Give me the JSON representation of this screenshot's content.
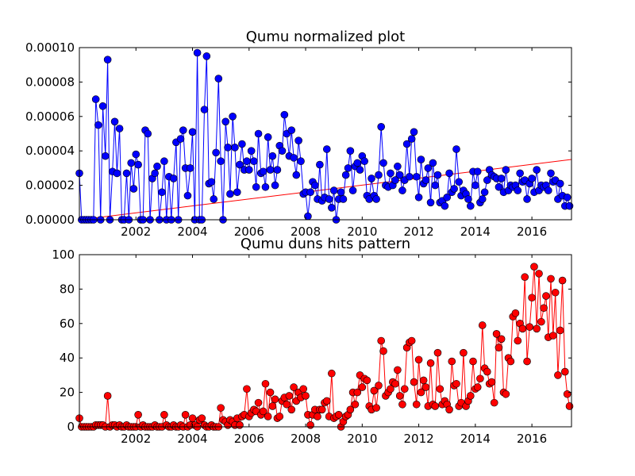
{
  "chart_data": [
    {
      "type": "line",
      "title": "Qumu normalized plot",
      "x": [
        2000,
        2000.08,
        2000.17,
        2000.25,
        2000.33,
        2000.42,
        2000.5,
        2000.58,
        2000.67,
        2000.75,
        2000.83,
        2000.92,
        2001,
        2001.08,
        2001.17,
        2001.25,
        2001.33,
        2001.42,
        2001.5,
        2001.58,
        2001.67,
        2001.75,
        2001.83,
        2001.92,
        2002,
        2002.08,
        2002.17,
        2002.25,
        2002.33,
        2002.42,
        2002.5,
        2002.58,
        2002.67,
        2002.75,
        2002.83,
        2002.92,
        2003,
        2003.08,
        2003.17,
        2003.25,
        2003.33,
        2003.42,
        2003.5,
        2003.58,
        2003.67,
        2003.75,
        2003.83,
        2003.92,
        2004,
        2004.08,
        2004.17,
        2004.25,
        2004.33,
        2004.42,
        2004.5,
        2004.58,
        2004.67,
        2004.75,
        2004.83,
        2004.92,
        2005,
        2005.08,
        2005.17,
        2005.25,
        2005.33,
        2005.42,
        2005.5,
        2005.58,
        2005.67,
        2005.75,
        2005.83,
        2005.92,
        2006,
        2006.08,
        2006.17,
        2006.25,
        2006.33,
        2006.42,
        2006.5,
        2006.58,
        2006.67,
        2006.75,
        2006.83,
        2006.92,
        2007,
        2007.08,
        2007.17,
        2007.25,
        2007.33,
        2007.42,
        2007.5,
        2007.58,
        2007.67,
        2007.75,
        2007.83,
        2007.92,
        2008,
        2008.08,
        2008.17,
        2008.25,
        2008.33,
        2008.42,
        2008.5,
        2008.58,
        2008.67,
        2008.75,
        2008.83,
        2008.92,
        2009,
        2009.08,
        2009.17,
        2009.25,
        2009.33,
        2009.42,
        2009.5,
        2009.58,
        2009.67,
        2009.75,
        2009.83,
        2009.92,
        2010,
        2010.08,
        2010.17,
        2010.25,
        2010.33,
        2010.42,
        2010.5,
        2010.58,
        2010.67,
        2010.75,
        2010.83,
        2010.92,
        2011,
        2011.08,
        2011.17,
        2011.25,
        2011.33,
        2011.42,
        2011.5,
        2011.58,
        2011.67,
        2011.75,
        2011.83,
        2011.92,
        2012,
        2012.08,
        2012.17,
        2012.25,
        2012.33,
        2012.42,
        2012.5,
        2012.58,
        2012.67,
        2012.75,
        2012.83,
        2012.92,
        2013,
        2013.08,
        2013.17,
        2013.25,
        2013.33,
        2013.42,
        2013.5,
        2013.58,
        2013.67,
        2013.75,
        2013.83,
        2013.92,
        2014,
        2014.08,
        2014.17,
        2014.25,
        2014.33,
        2014.42,
        2014.5,
        2014.58,
        2014.67,
        2014.75,
        2014.83,
        2014.92,
        2015,
        2015.08,
        2015.17,
        2015.25,
        2015.33,
        2015.42,
        2015.5,
        2015.58,
        2015.67,
        2015.75,
        2015.83,
        2015.92,
        2016,
        2016.08,
        2016.17,
        2016.25,
        2016.33,
        2016.42,
        2016.5,
        2016.58,
        2016.67,
        2016.75,
        2016.83,
        2016.92,
        2017,
        2017.08,
        2017.17,
        2017.25,
        2017.33
      ],
      "series": [
        {
          "color": "#0000ff",
          "values": [
            2.7e-05,
            0,
            0,
            0,
            0,
            0,
            0,
            7e-05,
            5.5e-05,
            0,
            6.6e-05,
            3.7e-05,
            9.3e-05,
            0,
            2.8e-05,
            5.7e-05,
            2.7e-05,
            5.3e-05,
            0,
            0,
            2.7e-05,
            0,
            3.3e-05,
            1.8e-05,
            3.8e-05,
            3.2e-05,
            0,
            0,
            5.2e-05,
            5e-05,
            0,
            2.4e-05,
            2.7e-05,
            3.1e-05,
            0,
            1.6e-05,
            3.4e-05,
            0,
            2.5e-05,
            0,
            2.4e-05,
            4.5e-05,
            0,
            4.7e-05,
            5.2e-05,
            3e-05,
            1.4e-05,
            3e-05,
            5.1e-05,
            0,
            9.7e-05,
            0,
            0,
            6.4e-05,
            9.5e-05,
            2.1e-05,
            2.2e-05,
            1.2e-05,
            3.9e-05,
            8.2e-05,
            3.4e-05,
            0,
            5.7e-05,
            4.2e-05,
            1.5e-05,
            6e-05,
            4.2e-05,
            1.6e-05,
            3.2e-05,
            4.4e-05,
            2.9e-05,
            3.4e-05,
            2.9e-05,
            4e-05,
            3.4e-05,
            1.9e-05,
            5e-05,
            2.7e-05,
            2.8e-05,
            1.9e-05,
            4.8e-05,
            2.9e-05,
            3.7e-05,
            2e-05,
            2.9e-05,
            4.3e-05,
            4e-05,
            6.1e-05,
            5e-05,
            3.7e-05,
            5.2e-05,
            3.6e-05,
            2.6e-05,
            4.6e-05,
            3.4e-05,
            1.5e-05,
            1.6e-05,
            2e-06,
            1.6e-05,
            2.2e-05,
            2e-05,
            1.2e-05,
            3.2e-05,
            1.1e-05,
            1.3e-05,
            4.1e-05,
            1.2e-05,
            7e-06,
            1.7e-05,
            0,
            1.2e-05,
            1.6e-05,
            1.2e-05,
            2.6e-05,
            3e-05,
            4e-05,
            1.7e-05,
            3.1e-05,
            3.3e-05,
            2.9e-05,
            3.7e-05,
            3.4e-05,
            1.4e-05,
            1.2e-05,
            2.4e-05,
            1.4e-05,
            1.2e-05,
            2.6e-05,
            5.4e-05,
            3.3e-05,
            2e-05,
            1.9e-05,
            2.7e-05,
            2e-05,
            2.3e-05,
            3.1e-05,
            2.6e-05,
            1.7e-05,
            2.3e-05,
            4.4e-05,
            2.5e-05,
            4.7e-05,
            5.1e-05,
            2.5e-05,
            1.3e-05,
            3.5e-05,
            2.1e-05,
            2.3e-05,
            3e-05,
            1e-05,
            3.3e-05,
            2e-05,
            2.6e-05,
            1e-05,
            1.1e-05,
            8e-06,
            1.3e-05,
            2.7e-05,
            1.6e-05,
            1.8e-05,
            4.1e-05,
            2.2e-05,
            1.4e-05,
            1.7e-05,
            1.5e-05,
            1.2e-05,
            8e-06,
            2.8e-05,
            2e-05,
            2.8e-05,
            1e-05,
            1.2e-05,
            1.6e-05,
            2.3e-05,
            2.9e-05,
            2.6e-05,
            2.5e-05,
            2.4e-05,
            1.9e-05,
            2.4e-05,
            1.6e-05,
            2.9e-05,
            1.7e-05,
            2e-05,
            1.9e-05,
            2e-05,
            1.7e-05,
            2.7e-05,
            2.2e-05,
            2.3e-05,
            1.2e-05,
            2.1e-05,
            2.4e-05,
            1.6e-05,
            2.9e-05,
            1.7e-05,
            2e-05,
            1.9e-05,
            2e-05,
            1.7e-05,
            2.7e-05,
            2.2e-05,
            2.3e-05,
            1.2e-05,
            2.1e-05,
            1.4e-05,
            8e-06,
            1.3e-05,
            8e-06
          ]
        }
      ],
      "trend": {
        "color": "#ff0000",
        "x": [
          2000,
          2017.4
        ],
        "values": [
          0,
          3.5e-05
        ]
      },
      "xlim": [
        2000,
        2017.4
      ],
      "ylim": [
        0,
        0.0001
      ],
      "xticks": [
        2002,
        2004,
        2006,
        2008,
        2010,
        2012,
        2014,
        2016
      ],
      "yticks": [
        {
          "value": 0,
          "label": "0.00000"
        },
        {
          "value": 2e-05,
          "label": "0.00002"
        },
        {
          "value": 4e-05,
          "label": "0.00004"
        },
        {
          "value": 6e-05,
          "label": "0.00006"
        },
        {
          "value": 8e-05,
          "label": "0.00008"
        },
        {
          "value": 0.0001,
          "label": "0.00010"
        }
      ]
    },
    {
      "type": "line",
      "title": "Qumu duns hits pattern",
      "x": [
        2000,
        2000.08,
        2000.17,
        2000.25,
        2000.33,
        2000.42,
        2000.5,
        2000.58,
        2000.67,
        2000.75,
        2000.83,
        2000.92,
        2001,
        2001.08,
        2001.17,
        2001.25,
        2001.33,
        2001.42,
        2001.5,
        2001.58,
        2001.67,
        2001.75,
        2001.83,
        2001.92,
        2002,
        2002.08,
        2002.17,
        2002.25,
        2002.33,
        2002.42,
        2002.5,
        2002.58,
        2002.67,
        2002.75,
        2002.83,
        2002.92,
        2003,
        2003.08,
        2003.17,
        2003.25,
        2003.33,
        2003.42,
        2003.5,
        2003.58,
        2003.67,
        2003.75,
        2003.83,
        2003.92,
        2004,
        2004.08,
        2004.17,
        2004.25,
        2004.33,
        2004.42,
        2004.5,
        2004.58,
        2004.67,
        2004.75,
        2004.83,
        2004.92,
        2005,
        2005.08,
        2005.17,
        2005.25,
        2005.33,
        2005.42,
        2005.5,
        2005.58,
        2005.67,
        2005.75,
        2005.83,
        2005.92,
        2006,
        2006.08,
        2006.17,
        2006.25,
        2006.33,
        2006.42,
        2006.5,
        2006.58,
        2006.67,
        2006.75,
        2006.83,
        2006.92,
        2007,
        2007.08,
        2007.17,
        2007.25,
        2007.33,
        2007.42,
        2007.5,
        2007.58,
        2007.67,
        2007.75,
        2007.83,
        2007.92,
        2008,
        2008.08,
        2008.17,
        2008.25,
        2008.33,
        2008.42,
        2008.5,
        2008.58,
        2008.67,
        2008.75,
        2008.83,
        2008.92,
        2009,
        2009.08,
        2009.17,
        2009.25,
        2009.33,
        2009.42,
        2009.5,
        2009.58,
        2009.67,
        2009.75,
        2009.83,
        2009.92,
        2010,
        2010.08,
        2010.17,
        2010.25,
        2010.33,
        2010.42,
        2010.5,
        2010.58,
        2010.67,
        2010.75,
        2010.83,
        2010.92,
        2011,
        2011.08,
        2011.17,
        2011.25,
        2011.33,
        2011.42,
        2011.5,
        2011.58,
        2011.67,
        2011.75,
        2011.83,
        2011.92,
        2012,
        2012.08,
        2012.17,
        2012.25,
        2012.33,
        2012.42,
        2012.5,
        2012.58,
        2012.67,
        2012.75,
        2012.83,
        2012.92,
        2013,
        2013.08,
        2013.17,
        2013.25,
        2013.33,
        2013.42,
        2013.5,
        2013.58,
        2013.67,
        2013.75,
        2013.83,
        2013.92,
        2014,
        2014.08,
        2014.17,
        2014.25,
        2014.33,
        2014.42,
        2014.5,
        2014.58,
        2014.67,
        2014.75,
        2014.83,
        2014.92,
        2015,
        2015.08,
        2015.17,
        2015.25,
        2015.33,
        2015.42,
        2015.5,
        2015.58,
        2015.67,
        2015.75,
        2015.83,
        2015.92,
        2016,
        2016.08,
        2016.17,
        2016.25,
        2016.33,
        2016.42,
        2016.5,
        2016.58,
        2016.67,
        2016.75,
        2016.83,
        2016.92,
        2017,
        2017.08,
        2017.17,
        2017.25,
        2017.33
      ],
      "series": [
        {
          "color": "#ff0000",
          "values": [
            5,
            0,
            0,
            0,
            0,
            0,
            0,
            1,
            1,
            1,
            1,
            0,
            18,
            0,
            1,
            1,
            0,
            1,
            0,
            0,
            1,
            0,
            0,
            0,
            0,
            7,
            0,
            1,
            0,
            0,
            0,
            0,
            1,
            0,
            0,
            0,
            7,
            1,
            0,
            0,
            1,
            0,
            0,
            1,
            0,
            7,
            0,
            1,
            5,
            1,
            0,
            4,
            5,
            1,
            0,
            0,
            1,
            0,
            0,
            0,
            11,
            4,
            3,
            1,
            4,
            3,
            1,
            5,
            1,
            6,
            7,
            22,
            6,
            8,
            10,
            9,
            14,
            7,
            9,
            25,
            6,
            20,
            12,
            16,
            5,
            6,
            15,
            17,
            13,
            18,
            10,
            23,
            15,
            20,
            17,
            22,
            18,
            7,
            1,
            7,
            10,
            6,
            10,
            10,
            14,
            15,
            6,
            31,
            5,
            6,
            7,
            0,
            3,
            6,
            7,
            10,
            20,
            13,
            20,
            30,
            23,
            28,
            27,
            12,
            10,
            21,
            11,
            24,
            50,
            44,
            18,
            20,
            22,
            26,
            25,
            33,
            18,
            13,
            22,
            46,
            49,
            50,
            26,
            13,
            39,
            20,
            27,
            23,
            12,
            37,
            13,
            12,
            43,
            22,
            13,
            15,
            13,
            10,
            38,
            24,
            25,
            12,
            14,
            43,
            12,
            15,
            18,
            38,
            22,
            23,
            28,
            59,
            34,
            32,
            25,
            26,
            14,
            54,
            46,
            51,
            20,
            19,
            40,
            38,
            64,
            66,
            50,
            60,
            57,
            87,
            38,
            58,
            75,
            93,
            57,
            89,
            61,
            69,
            76,
            52,
            86,
            53,
            78,
            30,
            56,
            85,
            32,
            19,
            12
          ]
        }
      ],
      "xlim": [
        2000,
        2017.4
      ],
      "ylim": [
        0,
        100
      ],
      "xticks": [
        2002,
        2004,
        2006,
        2008,
        2010,
        2012,
        2014,
        2016
      ],
      "yticks": [
        0,
        20,
        40,
        60,
        80,
        100
      ]
    }
  ]
}
